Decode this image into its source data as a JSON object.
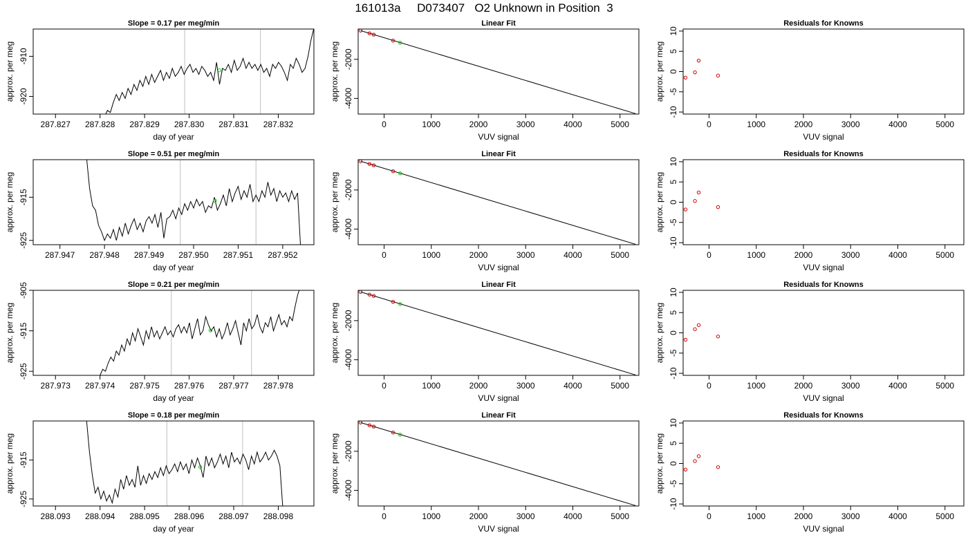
{
  "window": {
    "title": "161013a     D073407   O2 Unknown in Position  3"
  },
  "chart_data": [
    {
      "type": "line",
      "row": 1,
      "panel": "timeseries",
      "title": "Slope =  0.17  per meg/min",
      "xlabel": "day of year",
      "ylabel": "approx. per meg",
      "xlim": [
        287.8265,
        287.8328
      ],
      "ylim": [
        -924.4,
        -903.2
      ],
      "xticks": [
        "287.827",
        "287.828",
        "287.829",
        "287.830",
        "287.831",
        "287.832"
      ],
      "xtick_values": [
        287.827,
        287.828,
        287.829,
        287.83,
        287.831,
        287.832
      ],
      "yticks": [
        "-910",
        "-920"
      ],
      "ytick_values": [
        -910,
        -920
      ],
      "vlines": [
        287.8299,
        287.8316
      ],
      "series": [
        {
          "x_start": 287.8281,
          "x_end": 287.8328,
          "values": [
            -925.0,
            -923.5,
            -924.0,
            -921.5,
            -919.5,
            -921.0,
            -919.0,
            -920.5,
            -918.0,
            -919.5,
            -917.0,
            -918.5,
            -916.0,
            -917.5,
            -915.0,
            -917.0,
            -914.5,
            -916.5,
            -915.0,
            -913.5,
            -916.0,
            -914.0,
            -915.5,
            -913.0,
            -915.0,
            -914.0,
            -912.5,
            -914.5,
            -913.0,
            -912.0,
            -914.0,
            -913.0,
            -914.5,
            -912.5,
            -913.5,
            -915.0,
            -914.0,
            -916.0,
            -911.5,
            -917.0,
            -913.0,
            -913.5,
            -912.0,
            -914.0,
            -911.0,
            -913.5,
            -912.5,
            -910.5,
            -913.0,
            -911.5,
            -913.0,
            -912.0,
            -913.5,
            -912.0,
            -914.0,
            -913.0,
            -915.0,
            -912.0,
            -913.0,
            -911.5,
            -912.5,
            -914.0,
            -916.0,
            -912.0,
            -913.0,
            -910.5,
            -912.0,
            -914.0,
            -913.0,
            -910.0,
            -906.0,
            -903.0
          ]
        }
      ],
      "highlight_point": {
        "x": 287.83068,
        "y": -913.5
      }
    },
    {
      "type": "scatter",
      "row": 1,
      "panel": "linear_fit",
      "title": "Linear Fit",
      "xlabel": "VUV signal",
      "ylabel": "approx. per meg",
      "xlim": [
        -550,
        5400
      ],
      "ylim": [
        -4800,
        -450
      ],
      "xticks": [
        "0",
        "1000",
        "2000",
        "3000",
        "4000",
        "5000"
      ],
      "xtick_values": [
        0,
        1000,
        2000,
        3000,
        4000,
        5000
      ],
      "yticks": [
        "-2000",
        "-4000"
      ],
      "ytick_values": [
        -2000,
        -4000
      ],
      "fit_line": {
        "x": [
          -500,
          5330
        ],
        "y": [
          -530,
          -4780
        ]
      },
      "known_points": {
        "x": [
          -500,
          -310,
          -220,
          190
        ],
        "y": [
          -530,
          -670,
          -735,
          -1040
        ]
      },
      "unknown_point": {
        "x": 340,
        "y": -1150
      }
    },
    {
      "type": "scatter",
      "row": 1,
      "panel": "residuals",
      "title": "Residuals for Knowns",
      "xlabel": "VUV signal",
      "ylabel": "approx. per meg",
      "xlim": [
        -550,
        5400
      ],
      "ylim": [
        -10.5,
        10.5
      ],
      "xticks": [
        "0",
        "1000",
        "2000",
        "3000",
        "4000",
        "5000"
      ],
      "xtick_values": [
        0,
        1000,
        2000,
        3000,
        4000,
        5000
      ],
      "yticks": [
        "-10",
        "-5",
        "0",
        "5",
        "10"
      ],
      "ytick_values": [
        -10,
        -5,
        0,
        5,
        10
      ],
      "points": {
        "x": [
          -500,
          -300,
          -220,
          190
        ],
        "y": [
          -1.5,
          -0.2,
          2.7,
          -1.0
        ]
      }
    },
    {
      "type": "line",
      "row": 2,
      "panel": "timeseries",
      "title": "Slope =  0.51  per meg/min",
      "xlabel": "day of year",
      "ylabel": "approx. per meg",
      "xlim": [
        287.9464,
        287.9527
      ],
      "ylim": [
        -926.0,
        -906.3
      ],
      "xticks": [
        "287.947",
        "287.948",
        "287.949",
        "287.950",
        "287.951",
        "287.952"
      ],
      "xtick_values": [
        287.947,
        287.948,
        287.949,
        287.95,
        287.951,
        287.952
      ],
      "yticks": [
        "-915",
        "-925"
      ],
      "ytick_values": [
        -915,
        -925
      ],
      "vlines": [
        287.9497,
        287.9514
      ],
      "series": [
        {
          "x_start": 287.9476,
          "x_end": 287.9524,
          "values": [
            -906.0,
            -913.0,
            -917.0,
            -918.0,
            -921.5,
            -923.0,
            -925.0,
            -923.5,
            -924.5,
            -922.5,
            -925.0,
            -922.0,
            -924.0,
            -921.0,
            -923.5,
            -921.5,
            -920.0,
            -922.5,
            -921.0,
            -923.0,
            -920.5,
            -919.5,
            -921.0,
            -919.0,
            -922.0,
            -918.5,
            -924.5,
            -920.0,
            -919.5,
            -918.0,
            -920.0,
            -917.5,
            -919.0,
            -916.5,
            -918.0,
            -916.0,
            -917.5,
            -915.5,
            -917.0,
            -916.0,
            -918.5,
            -917.0,
            -917.5,
            -915.0,
            -918.0,
            -916.5,
            -914.5,
            -917.0,
            -913.0,
            -916.0,
            -914.0,
            -912.5,
            -915.5,
            -913.5,
            -915.0,
            -912.0,
            -916.0,
            -914.5,
            -916.0,
            -913.5,
            -915.0,
            -911.5,
            -914.5,
            -913.0,
            -916.0,
            -913.5,
            -915.0,
            -914.0,
            -916.0,
            -913.5,
            -915.5,
            -914.0,
            -926.5
          ]
        }
      ],
      "highlight_point": {
        "x": 287.95048,
        "y": -915.8
      }
    },
    {
      "type": "scatter",
      "row": 2,
      "panel": "linear_fit",
      "title": "Linear Fit",
      "xlabel": "VUV signal",
      "ylabel": "approx. per meg",
      "xlim": [
        -550,
        5400
      ],
      "ylim": [
        -4800,
        -450
      ],
      "xticks": [
        "0",
        "1000",
        "2000",
        "3000",
        "4000",
        "5000"
      ],
      "xtick_values": [
        0,
        1000,
        2000,
        3000,
        4000,
        5000
      ],
      "yticks": [
        "-2000",
        "-4000"
      ],
      "ytick_values": [
        -2000,
        -4000
      ],
      "fit_line": {
        "x": [
          -500,
          5330
        ],
        "y": [
          -530,
          -4780
        ]
      },
      "known_points": {
        "x": [
          -500,
          -310,
          -220,
          190
        ],
        "y": [
          -530,
          -670,
          -735,
          -1040
        ]
      },
      "unknown_point": {
        "x": 340,
        "y": -1150
      }
    },
    {
      "type": "scatter",
      "row": 2,
      "panel": "residuals",
      "title": "Residuals for Knowns",
      "xlabel": "VUV signal",
      "ylabel": "approx. per meg",
      "xlim": [
        -550,
        5400
      ],
      "ylim": [
        -10.5,
        10.5
      ],
      "xticks": [
        "0",
        "1000",
        "2000",
        "3000",
        "4000",
        "5000"
      ],
      "xtick_values": [
        0,
        1000,
        2000,
        3000,
        4000,
        5000
      ],
      "yticks": [
        "-10",
        "-5",
        "0",
        "5",
        "10"
      ],
      "ytick_values": [
        -10,
        -5,
        0,
        5,
        10
      ],
      "points": {
        "x": [
          -500,
          -300,
          -220,
          190
        ],
        "y": [
          -1.8,
          0.3,
          2.4,
          -1.2
        ]
      }
    },
    {
      "type": "line",
      "row": 3,
      "panel": "timeseries",
      "title": "Slope =  0.21  per meg/min",
      "xlabel": "day of year",
      "ylabel": "approx. per meg",
      "xlim": [
        287.9725,
        287.9788
      ],
      "ylim": [
        -926.0,
        -905.0
      ],
      "xticks": [
        "287.973",
        "287.974",
        "287.975",
        "287.976",
        "287.977",
        "287.978"
      ],
      "xtick_values": [
        287.973,
        287.974,
        287.975,
        287.976,
        287.977,
        287.978
      ],
      "yticks": [
        "-905",
        "-915",
        "-925"
      ],
      "ytick_values": [
        -905,
        -915,
        -925
      ],
      "vlines": [
        287.9756,
        287.9774
      ],
      "series": [
        {
          "x_start": 287.974,
          "x_end": 287.9785,
          "values": [
            -926.0,
            -924.5,
            -925.0,
            -923.0,
            -921.5,
            -922.5,
            -920.0,
            -921.0,
            -918.5,
            -920.0,
            -917.0,
            -918.5,
            -915.5,
            -917.5,
            -914.5,
            -916.5,
            -918.5,
            -915.0,
            -917.0,
            -914.0,
            -916.5,
            -915.0,
            -917.0,
            -915.5,
            -914.0,
            -916.0,
            -915.0,
            -916.5,
            -914.5,
            -913.5,
            -915.5,
            -914.0,
            -915.5,
            -913.0,
            -917.0,
            -914.5,
            -912.0,
            -916.0,
            -915.0,
            -911.5,
            -913.5,
            -915.0,
            -914.0,
            -916.5,
            -914.5,
            -917.0,
            -915.5,
            -913.0,
            -916.0,
            -914.5,
            -912.5,
            -915.5,
            -918.5,
            -913.0,
            -915.0,
            -912.0,
            -914.5,
            -913.5,
            -911.0,
            -914.0,
            -915.5,
            -913.0,
            -914.0,
            -911.5,
            -915.0,
            -913.0,
            -911.0,
            -913.5,
            -912.5,
            -914.0,
            -911.5,
            -912.5,
            -909.0,
            -906.0,
            -904.0
          ]
        }
      ],
      "highlight_point": {
        "x": 287.97648,
        "y": -914.9
      }
    },
    {
      "type": "scatter",
      "row": 3,
      "panel": "linear_fit",
      "title": "Linear Fit",
      "xlabel": "VUV signal",
      "ylabel": "approx. per meg",
      "xlim": [
        -550,
        5400
      ],
      "ylim": [
        -4800,
        -450
      ],
      "xticks": [
        "0",
        "1000",
        "2000",
        "3000",
        "4000",
        "5000"
      ],
      "xtick_values": [
        0,
        1000,
        2000,
        3000,
        4000,
        5000
      ],
      "yticks": [
        "-2000",
        "-4000"
      ],
      "ytick_values": [
        -2000,
        -4000
      ],
      "fit_line": {
        "x": [
          -500,
          5330
        ],
        "y": [
          -530,
          -4780
        ]
      },
      "known_points": {
        "x": [
          -500,
          -310,
          -220,
          190
        ],
        "y": [
          -530,
          -670,
          -735,
          -1040
        ]
      },
      "unknown_point": {
        "x": 340,
        "y": -1150
      }
    },
    {
      "type": "scatter",
      "row": 3,
      "panel": "residuals",
      "title": "Residuals for Knowns",
      "xlabel": "VUV signal",
      "ylabel": "approx. per meg",
      "xlim": [
        -550,
        5400
      ],
      "ylim": [
        -10.5,
        10.5
      ],
      "xticks": [
        "0",
        "1000",
        "2000",
        "3000",
        "4000",
        "5000"
      ],
      "xtick_values": [
        0,
        1000,
        2000,
        3000,
        4000,
        5000
      ],
      "yticks": [
        "-10",
        "-5",
        "0",
        "5",
        "10"
      ],
      "ytick_values": [
        -10,
        -5,
        0,
        5,
        10
      ],
      "points": {
        "x": [
          -500,
          -300,
          -220,
          190
        ],
        "y": [
          -1.7,
          0.9,
          1.9,
          -0.9
        ]
      }
    },
    {
      "type": "line",
      "row": 4,
      "panel": "timeseries",
      "title": "Slope =  0.18  per meg/min",
      "xlabel": "day of year",
      "ylabel": "approx. per meg",
      "xlim": [
        288.0925,
        288.0988
      ],
      "ylim": [
        -926.8,
        -905.0
      ],
      "xticks": [
        "288.093",
        "288.094",
        "288.095",
        "288.096",
        "288.097",
        "288.098"
      ],
      "xtick_values": [
        288.093,
        288.094,
        288.095,
        288.096,
        288.097,
        288.098
      ],
      "yticks": [
        "-915",
        "-925"
      ],
      "ytick_values": [
        -915,
        -925
      ],
      "vlines": [
        288.0955,
        288.0972
      ],
      "series": [
        {
          "x_start": 288.0937,
          "x_end": 288.0981,
          "values": [
            -905.0,
            -913.0,
            -919.0,
            -923.5,
            -922.0,
            -925.0,
            -923.0,
            -925.5,
            -924.0,
            -926.0,
            -922.5,
            -924.5,
            -920.0,
            -922.5,
            -919.0,
            -921.5,
            -920.0,
            -922.0,
            -916.5,
            -921.5,
            -919.0,
            -921.0,
            -918.5,
            -920.0,
            -918.0,
            -919.5,
            -917.0,
            -919.0,
            -916.5,
            -918.5,
            -917.5,
            -916.0,
            -918.0,
            -915.5,
            -917.5,
            -916.0,
            -918.5,
            -915.0,
            -917.0,
            -914.5,
            -916.5,
            -919.5,
            -914.0,
            -916.5,
            -914.5,
            -917.0,
            -915.5,
            -913.5,
            -916.0,
            -914.0,
            -917.0,
            -913.0,
            -915.5,
            -914.5,
            -916.0,
            -913.5,
            -915.0,
            -917.5,
            -914.0,
            -916.0,
            -913.0,
            -915.5,
            -914.5,
            -913.0,
            -915.0,
            -914.0,
            -912.5,
            -914.0,
            -916.5,
            -927.0
          ]
        }
      ],
      "highlight_point": {
        "x": 288.09625,
        "y": -916.8
      }
    },
    {
      "type": "scatter",
      "row": 4,
      "panel": "linear_fit",
      "title": "Linear Fit",
      "xlabel": "VUV signal",
      "ylabel": "approx. per meg",
      "xlim": [
        -550,
        5400
      ],
      "ylim": [
        -4800,
        -450
      ],
      "xticks": [
        "0",
        "1000",
        "2000",
        "3000",
        "4000",
        "5000"
      ],
      "xtick_values": [
        0,
        1000,
        2000,
        3000,
        4000,
        5000
      ],
      "yticks": [
        "-2000",
        "-4000"
      ],
      "ytick_values": [
        -2000,
        -4000
      ],
      "fit_line": {
        "x": [
          -500,
          5330
        ],
        "y": [
          -530,
          -4780
        ]
      },
      "known_points": {
        "x": [
          -500,
          -310,
          -220,
          190
        ],
        "y": [
          -530,
          -670,
          -735,
          -1040
        ]
      },
      "unknown_point": {
        "x": 340,
        "y": -1150
      }
    },
    {
      "type": "scatter",
      "row": 4,
      "panel": "residuals",
      "title": "Residuals for Knowns",
      "xlabel": "VUV signal",
      "ylabel": "approx. per meg",
      "xlim": [
        -550,
        5400
      ],
      "ylim": [
        -10.5,
        10.5
      ],
      "xticks": [
        "0",
        "1000",
        "2000",
        "3000",
        "4000",
        "5000"
      ],
      "xtick_values": [
        0,
        1000,
        2000,
        3000,
        4000,
        5000
      ],
      "yticks": [
        "-10",
        "-5",
        "0",
        "5",
        "10"
      ],
      "ytick_values": [
        -10,
        -5,
        0,
        5,
        10
      ],
      "points": {
        "x": [
          -500,
          -300,
          -220,
          190
        ],
        "y": [
          -1.5,
          0.6,
          1.8,
          -0.9
        ]
      }
    }
  ],
  "colors": {
    "line": "#000000",
    "vline": "#bfbfbf",
    "known_point": "#cc0000",
    "unknown_point": "#00cc00"
  }
}
